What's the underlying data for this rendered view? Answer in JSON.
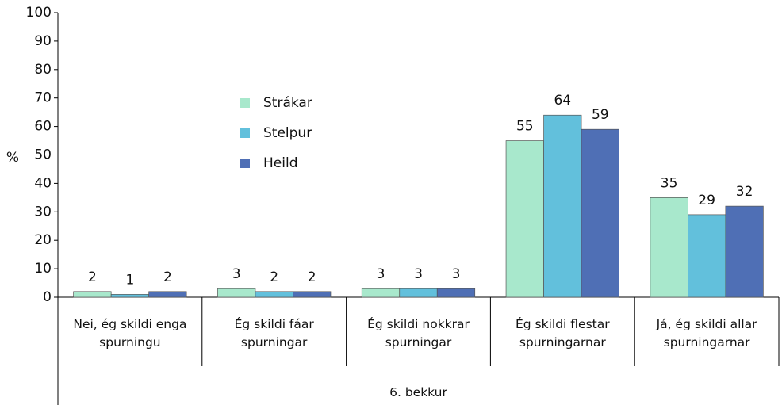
{
  "chart_data": {
    "type": "bar",
    "categories": [
      "Nei, ég skildi enga spurningu",
      "Ég skildi fáar spurningar",
      "Ég skildi nokkrar spurningar",
      "Ég skildi flestar spurningarnar",
      "Já, ég skildi allar spurningarnar"
    ],
    "group_label": "6. bekkur",
    "y_label": "%",
    "series": [
      {
        "name": "Strákar",
        "color": "#a8e8cc",
        "values": [
          2,
          3,
          3,
          55,
          35
        ]
      },
      {
        "name": "Stelpur",
        "color": "#62c0dc",
        "values": [
          1,
          2,
          3,
          64,
          29
        ]
      },
      {
        "name": "Heild",
        "color": "#4f6fb5",
        "values": [
          2,
          2,
          3,
          59,
          32
        ]
      }
    ],
    "ylim": [
      0,
      100
    ],
    "yticks": [
      0,
      10,
      20,
      30,
      40,
      50,
      60,
      70,
      80,
      90,
      100
    ],
    "grid": false,
    "legend": "center-left"
  }
}
